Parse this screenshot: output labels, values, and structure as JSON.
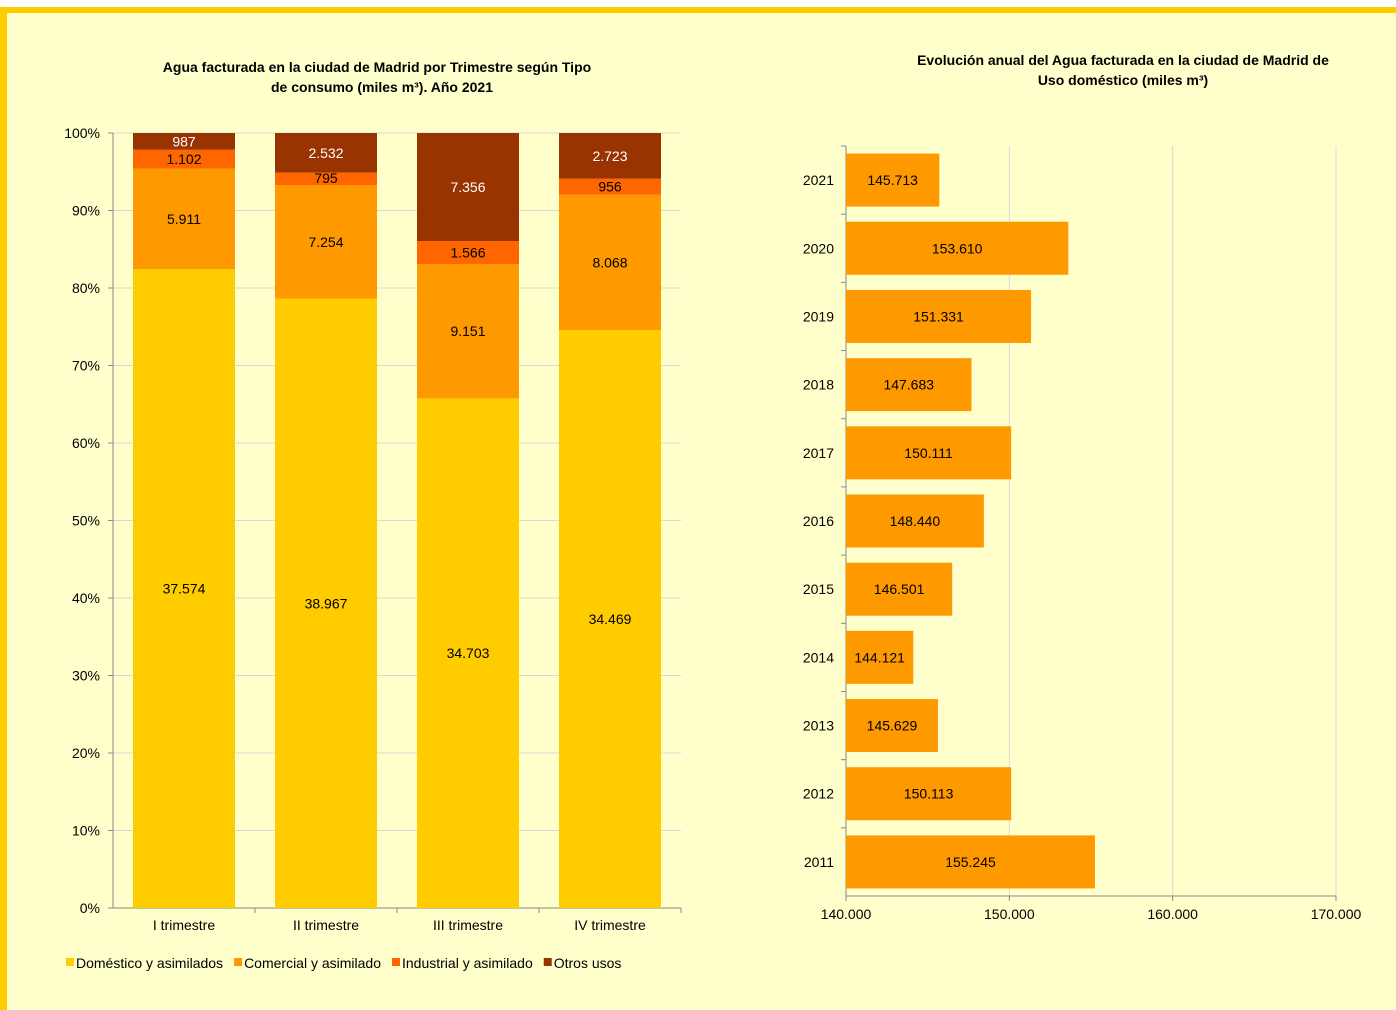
{
  "chart_data": [
    {
      "type": "bar",
      "stacked": "percent",
      "title_line1": "Agua facturada en la ciudad de Madrid por Trimestre según Tipo",
      "title_line2": "de consumo (miles m³). Año 2021",
      "categories": [
        "I trimestre",
        "II trimestre",
        "III trimestre",
        "IV trimestre"
      ],
      "series": [
        {
          "name": "Doméstico y asimilados",
          "color": "#ffcc00",
          "values": [
            37574,
            38967,
            34703,
            34469
          ],
          "labels": [
            "37.574",
            "38.967",
            "34.703",
            "34.469"
          ]
        },
        {
          "name": "Comercial y asimilado",
          "color": "#ff9900",
          "values": [
            5911,
            7254,
            9151,
            8068
          ],
          "labels": [
            "5.911",
            "7.254",
            "9.151",
            "8.068"
          ]
        },
        {
          "name": "Industrial y asimilado",
          "color": "#ff6600",
          "values": [
            1102,
            795,
            1566,
            956
          ],
          "labels": [
            "1.102",
            "795",
            "1.566",
            "956"
          ]
        },
        {
          "name": "Otros usos",
          "color": "#993300",
          "values": [
            987,
            2532,
            7356,
            2723
          ],
          "labels": [
            "987",
            "2.532",
            "7.356",
            "2.723"
          ]
        }
      ],
      "y_ticks": [
        "0%",
        "10%",
        "20%",
        "30%",
        "40%",
        "50%",
        "60%",
        "70%",
        "80%",
        "90%",
        "100%"
      ],
      "ylim": [
        0,
        100
      ],
      "grid": true,
      "legend_position": "bottom"
    },
    {
      "type": "bar",
      "orientation": "horizontal",
      "title_line1": "Evolución anual del Agua facturada en la ciudad de Madrid de",
      "title_line2": "Uso doméstico (miles m³)",
      "categories": [
        "2021",
        "2020",
        "2019",
        "2018",
        "2017",
        "2016",
        "2015",
        "2014",
        "2013",
        "2012",
        "2011"
      ],
      "values": [
        145713,
        153610,
        151331,
        147683,
        150111,
        148440,
        146501,
        144121,
        145629,
        150113,
        155245
      ],
      "labels": [
        "145.713",
        "153.610",
        "151.331",
        "147.683",
        "150.111",
        "148.440",
        "146.501",
        "144.121",
        "145.629",
        "150.113",
        "155.245"
      ],
      "x_ticks": [
        "140.000",
        "150.000",
        "160.000",
        "170.000"
      ],
      "xlim": [
        140000,
        170000
      ],
      "color": "#ff9900",
      "grid": true
    }
  ]
}
